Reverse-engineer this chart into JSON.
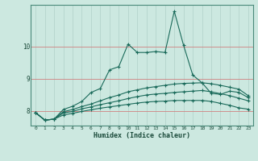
{
  "xlabel": "Humidex (Indice chaleur)",
  "bg_color": "#cce8e0",
  "line_color": "#1a6a5a",
  "grid_color_h": "#d08080",
  "grid_color_v": "#b0d0c8",
  "xlim": [
    -0.5,
    23.5
  ],
  "ylim": [
    7.55,
    11.3
  ],
  "xticks": [
    0,
    1,
    2,
    3,
    4,
    5,
    6,
    7,
    8,
    9,
    10,
    11,
    12,
    13,
    14,
    15,
    16,
    17,
    18,
    19,
    20,
    21,
    22,
    23
  ],
  "yticks": [
    8,
    9,
    10
  ],
  "line1": [
    7.95,
    7.72,
    7.75,
    8.05,
    8.15,
    8.3,
    8.58,
    8.7,
    9.28,
    9.38,
    10.08,
    9.82,
    9.82,
    9.85,
    9.82,
    11.1,
    10.05,
    9.12,
    8.88,
    8.55,
    8.52,
    8.62,
    8.58,
    8.42
  ],
  "line2": [
    7.95,
    7.72,
    7.75,
    7.98,
    8.05,
    8.14,
    8.22,
    8.32,
    8.42,
    8.5,
    8.6,
    8.66,
    8.72,
    8.76,
    8.8,
    8.84,
    8.86,
    8.87,
    8.88,
    8.85,
    8.8,
    8.74,
    8.68,
    8.48
  ],
  "line3": [
    7.95,
    7.72,
    7.75,
    7.94,
    7.99,
    8.07,
    8.13,
    8.2,
    8.26,
    8.32,
    8.39,
    8.45,
    8.5,
    8.53,
    8.55,
    8.58,
    8.6,
    8.62,
    8.64,
    8.6,
    8.54,
    8.48,
    8.4,
    8.32
  ],
  "line4": [
    7.95,
    7.72,
    7.75,
    7.88,
    7.93,
    7.99,
    8.04,
    8.09,
    8.13,
    8.17,
    8.21,
    8.25,
    8.28,
    8.3,
    8.31,
    8.33,
    8.33,
    8.33,
    8.33,
    8.3,
    8.24,
    8.18,
    8.1,
    8.06
  ]
}
